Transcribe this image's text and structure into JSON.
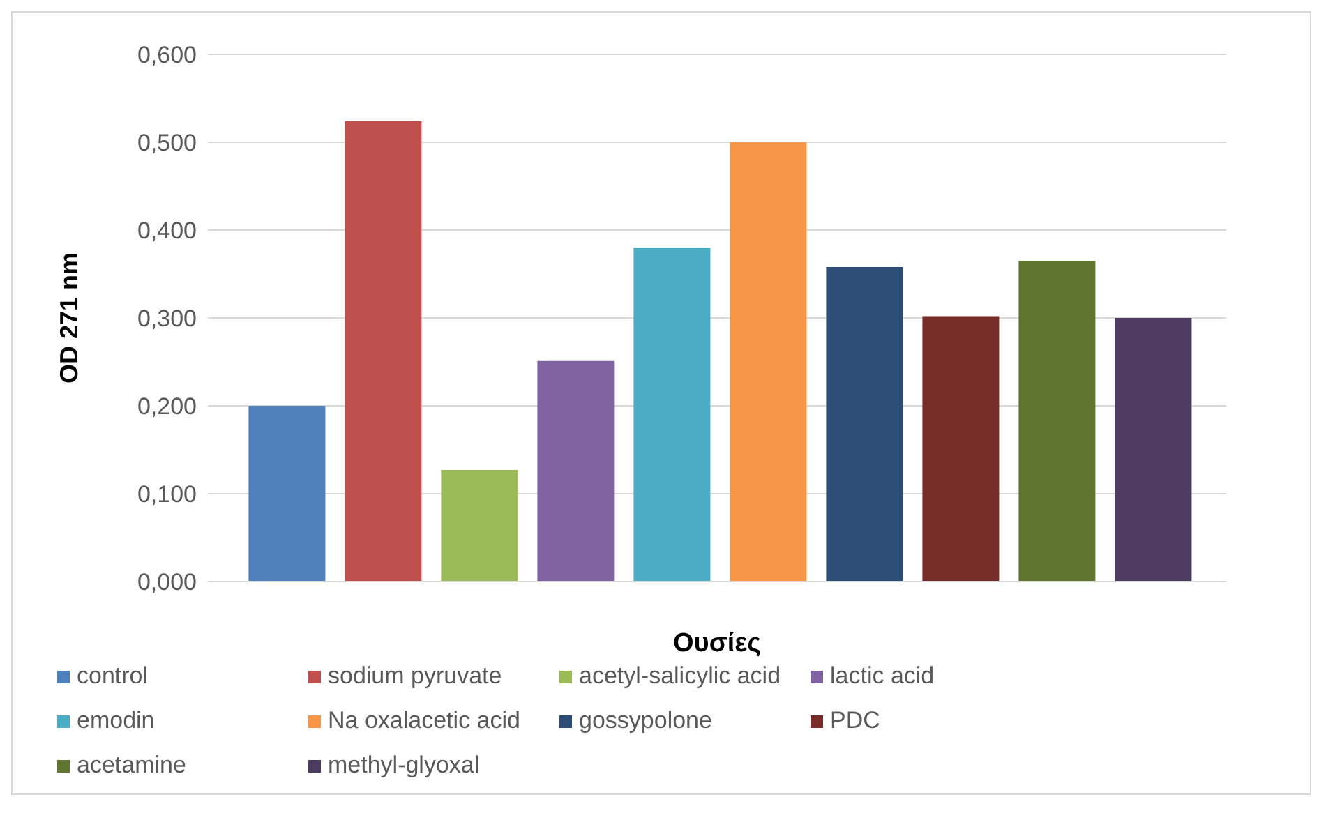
{
  "chart_data": {
    "type": "bar",
    "xlabel": "Ουσίες",
    "ylabel": "OD 271 nm",
    "categories": [
      null
    ],
    "series": [
      {
        "name": "control",
        "color": "#4f81bd",
        "values": [
          0.2
        ]
      },
      {
        "name": "sodium pyruvate",
        "color": "#c0504d",
        "values": [
          0.524
        ]
      },
      {
        "name": "acetyl-salicylic acid",
        "color": "#9bbb59",
        "values": [
          0.127
        ]
      },
      {
        "name": "lactic acid",
        "color": "#8064a2",
        "values": [
          0.251
        ]
      },
      {
        "name": "emodin",
        "color": "#4bacc6",
        "values": [
          0.38
        ]
      },
      {
        "name": "Na oxalacetic acid",
        "color": "#f79646",
        "values": [
          0.5
        ]
      },
      {
        "name": "gossypolone",
        "color": "#2c4d75",
        "values": [
          0.358
        ]
      },
      {
        "name": "PDC",
        "color": "#772c2a",
        "values": [
          0.302
        ]
      },
      {
        "name": "acetamine",
        "color": "#5f7530",
        "values": [
          0.365
        ]
      },
      {
        "name": "methyl-glyoxal",
        "color": "#4d3b62",
        "values": [
          0.3
        ]
      }
    ],
    "ylim": [
      0,
      0.6
    ],
    "yticks": [
      {
        "value": 0,
        "label": "0,000"
      },
      {
        "value": 0.1,
        "label": "0,100"
      },
      {
        "value": 0.2,
        "label": "0,200"
      },
      {
        "value": 0.3,
        "label": "0,300"
      },
      {
        "value": 0.4,
        "label": "0,400"
      },
      {
        "value": 0.5,
        "label": "0,500"
      },
      {
        "value": 0.6,
        "label": "0,600"
      }
    ],
    "grid": "y",
    "legend": "bottom"
  }
}
